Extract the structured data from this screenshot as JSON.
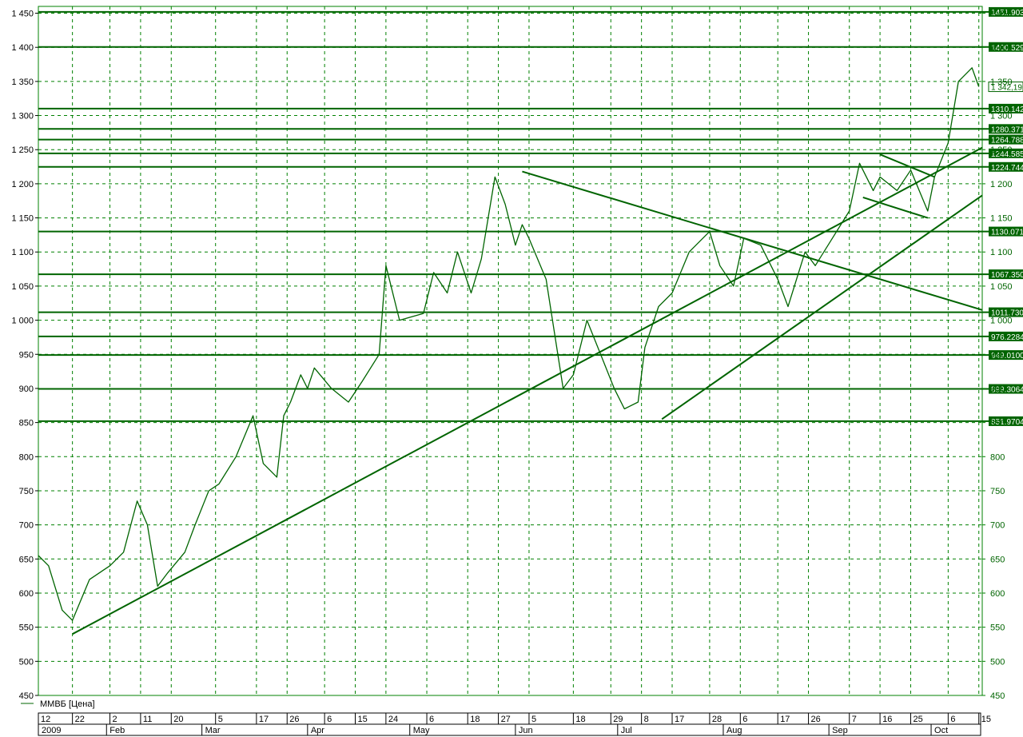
{
  "chart_data": {
    "type": "line",
    "series": [
      {
        "name": "ММВБ [Цена]",
        "x": [
          "2009-01-12",
          "2009-01-15",
          "2009-01-19",
          "2009-01-22",
          "2009-01-27",
          "2009-02-02",
          "2009-02-06",
          "2009-02-10",
          "2009-02-13",
          "2009-02-16",
          "2009-02-19",
          "2009-02-24",
          "2009-02-27",
          "2009-03-03",
          "2009-03-06",
          "2009-03-11",
          "2009-03-16",
          "2009-03-19",
          "2009-03-23",
          "2009-03-25",
          "2009-03-27",
          "2009-03-30",
          "2009-04-01",
          "2009-04-03",
          "2009-04-08",
          "2009-04-13",
          "2009-04-17",
          "2009-04-22",
          "2009-04-24",
          "2009-04-28",
          "2009-05-05",
          "2009-05-08",
          "2009-05-12",
          "2009-05-15",
          "2009-05-19",
          "2009-05-22",
          "2009-05-26",
          "2009-05-29",
          "2009-06-01",
          "2009-06-03",
          "2009-06-05",
          "2009-06-10",
          "2009-06-15",
          "2009-06-18",
          "2009-06-22",
          "2009-06-26",
          "2009-06-30",
          "2009-07-03",
          "2009-07-07",
          "2009-07-09",
          "2009-07-13",
          "2009-07-17",
          "2009-07-22",
          "2009-07-28",
          "2009-07-31",
          "2009-08-04",
          "2009-08-07",
          "2009-08-12",
          "2009-08-17",
          "2009-08-20",
          "2009-08-25",
          "2009-08-28",
          "2009-09-02",
          "2009-09-07",
          "2009-09-10",
          "2009-09-14",
          "2009-09-16",
          "2009-09-21",
          "2009-09-25",
          "2009-09-30",
          "2009-10-02",
          "2009-10-06",
          "2009-10-09",
          "2009-10-13",
          "2009-10-15"
        ],
        "values": [
          655,
          640,
          575,
          560,
          620,
          640,
          660,
          735,
          700,
          610,
          630,
          660,
          700,
          750,
          760,
          800,
          860,
          790,
          770,
          860,
          880,
          920,
          900,
          930,
          900,
          880,
          910,
          950,
          1080,
          1000,
          1010,
          1070,
          1040,
          1100,
          1040,
          1090,
          1210,
          1170,
          1110,
          1140,
          1120,
          1060,
          900,
          920,
          1000,
          950,
          900,
          870,
          880,
          960,
          1020,
          1040,
          1100,
          1130,
          1080,
          1050,
          1120,
          1110,
          1060,
          1020,
          1100,
          1080,
          1120,
          1160,
          1230,
          1190,
          1210,
          1190,
          1220,
          1160,
          1210,
          1260,
          1350,
          1370,
          1342.19
        ]
      }
    ],
    "level_lines": [
      "1451.903",
      "1400.529",
      "1310.142",
      "1280.371",
      "1264.788",
      "1244.585",
      "1224.744",
      "1130.071",
      "1067.350",
      "1011.730",
      "976.2284",
      "949.0100",
      "899.3064",
      "851.9704"
    ],
    "last_value_label": "1 342,19",
    "y_tick_labels": [
      "1 450",
      "1 400",
      "1 350",
      "1 300",
      "1 250",
      "1 200",
      "1 150",
      "1 100",
      "1 050",
      "1 000",
      "950",
      "900",
      "850",
      "800",
      "750",
      "700",
      "650",
      "600",
      "550",
      "500",
      "450"
    ],
    "ylim": [
      450,
      1460
    ],
    "xlim": [
      "2009-01-12",
      "2009-10-16"
    ],
    "trendlines": [
      {
        "from": [
          "2009-01-22",
          540
        ],
        "to": [
          "2009-10-16",
          1253
        ]
      },
      {
        "from": [
          "2009-07-14",
          855
        ],
        "to": [
          "2009-10-16",
          1183
        ]
      },
      {
        "from": [
          "2009-06-03",
          1218
        ],
        "to": [
          "2009-10-16",
          1015
        ]
      },
      {
        "from": [
          "2009-09-16",
          1243
        ],
        "to": [
          "2009-10-02",
          1210
        ]
      },
      {
        "from": [
          "2009-09-11",
          1180
        ],
        "to": [
          "2009-09-30",
          1150
        ]
      }
    ],
    "x_day_labels": [
      "12",
      "22",
      "2",
      "11",
      "20",
      "5",
      "17",
      "26",
      "6",
      "15",
      "24",
      "6",
      "18",
      "27",
      "5",
      "18",
      "29",
      "8",
      "17",
      "28",
      "6",
      "17",
      "26",
      "7",
      "16",
      "25",
      "6",
      "15"
    ],
    "x_month_labels": [
      "2009",
      "Feb",
      "Mar",
      "Apr",
      "May",
      "Jun",
      "Jul",
      "Aug",
      "Sep",
      "Oct"
    ],
    "grid": true,
    "legend": "bottom-left",
    "colors": {
      "line": "#006400",
      "grid": "#008000",
      "background": "#ffffff",
      "label_bg": "#006400"
    }
  }
}
